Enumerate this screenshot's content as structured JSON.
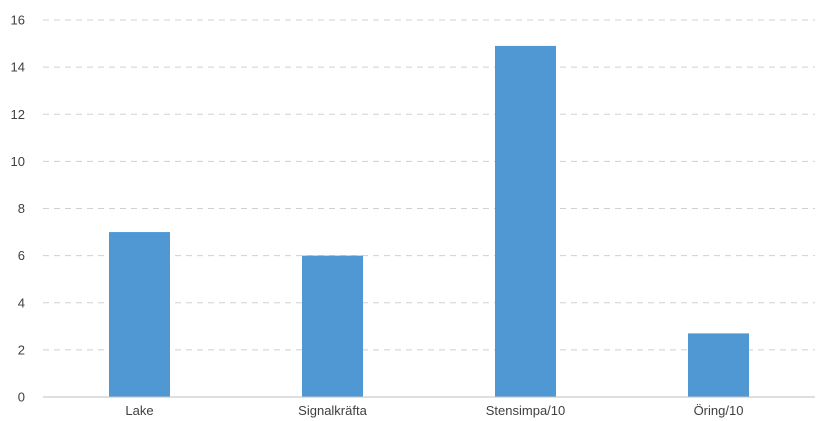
{
  "chart_data": {
    "type": "bar",
    "title": "",
    "xlabel": "",
    "ylabel": "",
    "categories": [
      "Lake",
      "Signalkräfta",
      "Stensimpa/10",
      "Öring/10"
    ],
    "values": [
      7.0,
      6.0,
      14.9,
      2.7
    ],
    "ylim": [
      0,
      16
    ],
    "yticks": [
      0,
      2,
      4,
      6,
      8,
      10,
      12,
      14,
      16
    ],
    "ytick_labels": [
      "0",
      "2",
      "4",
      "6",
      "8",
      "10",
      "12",
      "14",
      "16"
    ],
    "grid": true,
    "legend": "none",
    "colors": {
      "bar": "#5098d4",
      "grid": "#d0d0d0",
      "text": "#404040",
      "axis": "#bfbfbf"
    }
  }
}
